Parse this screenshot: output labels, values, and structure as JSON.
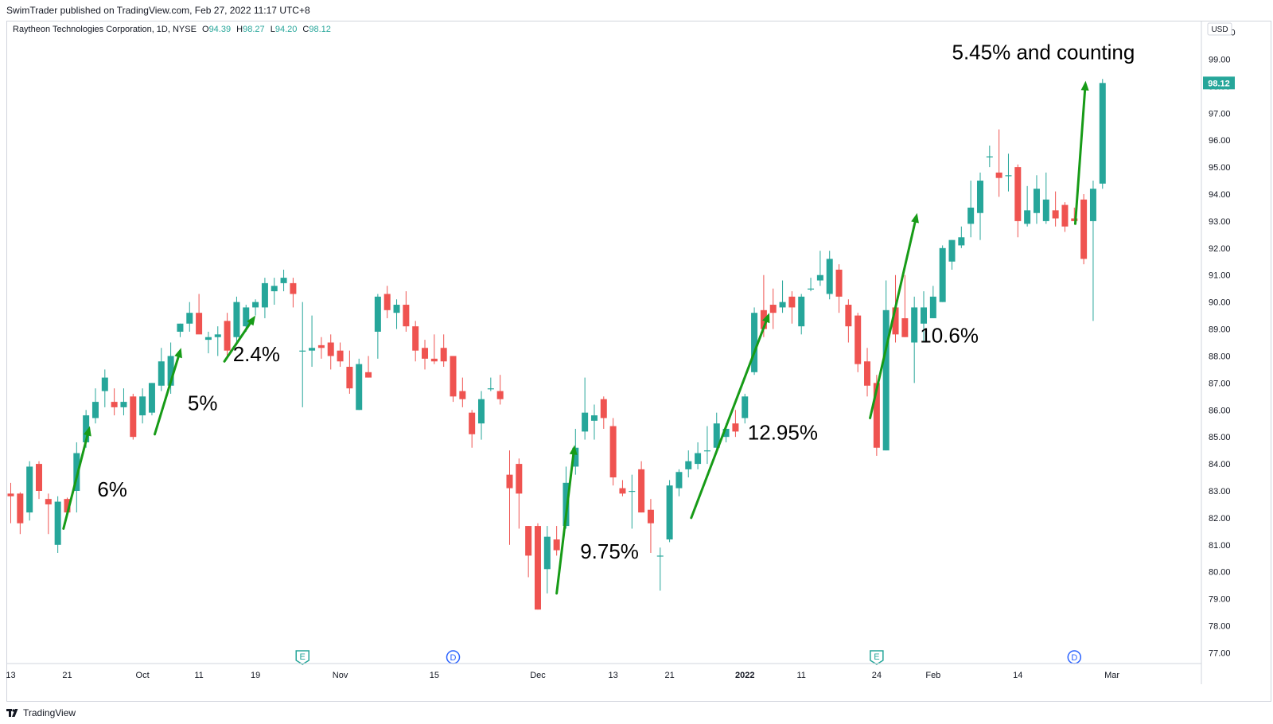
{
  "header": {
    "published_text": "SwimTrader published on TradingView.com, Feb 27, 2022 11:17 UTC+8"
  },
  "legend": {
    "symbol_text": "Raytheon Technologies Corporation, 1D, NYSE",
    "open_label": "O",
    "open_value": "94.39",
    "high_label": "H",
    "high_value": "98.27",
    "low_label": "L",
    "low_value": "94.20",
    "close_label": "C",
    "close_value": "98.12"
  },
  "footer": {
    "brand": "TradingView"
  },
  "colors": {
    "up": "#26a69a",
    "down": "#ef5350",
    "arrow": "#179b17",
    "grid": "#e0e3eb",
    "axis_text": "#131722"
  },
  "chart_data": {
    "type": "candlestick",
    "title": "",
    "currency_label": "USD",
    "last_price_label": "98.12",
    "ylim": [
      76.6,
      100.4
    ],
    "y_ticks": [
      "77.00",
      "78.00",
      "79.00",
      "80.00",
      "81.00",
      "82.00",
      "83.00",
      "84.00",
      "85.00",
      "86.00",
      "87.00",
      "88.00",
      "89.00",
      "90.00",
      "91.00",
      "92.00",
      "93.00",
      "94.00",
      "95.00",
      "96.00",
      "97.00",
      "98.00",
      "99.00",
      "100.00"
    ],
    "x_tick_labels": [
      {
        "bar": 0,
        "label": "13"
      },
      {
        "bar": 6,
        "label": "21"
      },
      {
        "bar": 14,
        "label": "Oct"
      },
      {
        "bar": 20,
        "label": "11"
      },
      {
        "bar": 26,
        "label": "19"
      },
      {
        "bar": 35,
        "label": "Nov"
      },
      {
        "bar": 45,
        "label": "15"
      },
      {
        "bar": 56,
        "label": "Dec"
      },
      {
        "bar": 64,
        "label": "13"
      },
      {
        "bar": 70,
        "label": "21"
      },
      {
        "bar": 78,
        "label": "2022"
      },
      {
        "bar": 84,
        "label": "11"
      },
      {
        "bar": 92,
        "label": "24"
      },
      {
        "bar": 98,
        "label": "Feb"
      },
      {
        "bar": 107,
        "label": "14"
      },
      {
        "bar": 117,
        "label": "Mar"
      }
    ],
    "candles": [
      {
        "o": 82.9,
        "h": 83.3,
        "l": 81.8,
        "c": 82.8
      },
      {
        "o": 82.9,
        "h": 82.95,
        "l": 81.4,
        "c": 81.8
      },
      {
        "o": 82.2,
        "h": 84.1,
        "l": 81.9,
        "c": 83.9
      },
      {
        "o": 84.0,
        "h": 84.1,
        "l": 82.7,
        "c": 83.0
      },
      {
        "o": 82.7,
        "h": 82.9,
        "l": 81.4,
        "c": 82.5
      },
      {
        "o": 81.0,
        "h": 82.8,
        "l": 80.7,
        "c": 82.6
      },
      {
        "o": 82.7,
        "h": 82.75,
        "l": 82.2,
        "c": 82.2
      },
      {
        "o": 83.0,
        "h": 84.8,
        "l": 82.2,
        "c": 84.4
      },
      {
        "o": 84.8,
        "h": 86.0,
        "l": 84.6,
        "c": 85.8
      },
      {
        "o": 85.7,
        "h": 86.8,
        "l": 85.5,
        "c": 86.3
      },
      {
        "o": 86.7,
        "h": 87.5,
        "l": 86.1,
        "c": 87.2
      },
      {
        "o": 86.3,
        "h": 86.8,
        "l": 85.8,
        "c": 86.1
      },
      {
        "o": 86.1,
        "h": 86.8,
        "l": 85.8,
        "c": 86.3
      },
      {
        "o": 86.5,
        "h": 86.6,
        "l": 84.9,
        "c": 85.0
      },
      {
        "o": 85.8,
        "h": 86.8,
        "l": 85.5,
        "c": 86.5
      },
      {
        "o": 85.9,
        "h": 87.0,
        "l": 85.8,
        "c": 87.0
      },
      {
        "o": 86.9,
        "h": 88.3,
        "l": 86.7,
        "c": 87.8
      },
      {
        "o": 86.9,
        "h": 88.5,
        "l": 86.6,
        "c": 88.0
      },
      {
        "o": 88.9,
        "h": 89.2,
        "l": 88.7,
        "c": 89.2
      },
      {
        "o": 89.2,
        "h": 90.0,
        "l": 88.9,
        "c": 89.6
      },
      {
        "o": 89.6,
        "h": 90.3,
        "l": 88.9,
        "c": 88.8
      },
      {
        "o": 88.6,
        "h": 88.9,
        "l": 88.1,
        "c": 88.7
      },
      {
        "o": 88.7,
        "h": 89.1,
        "l": 88.0,
        "c": 88.8
      },
      {
        "o": 89.3,
        "h": 89.6,
        "l": 87.9,
        "c": 88.2
      },
      {
        "o": 88.7,
        "h": 90.2,
        "l": 88.4,
        "c": 90.0
      },
      {
        "o": 89.1,
        "h": 89.9,
        "l": 88.9,
        "c": 89.8
      },
      {
        "o": 89.8,
        "h": 90.1,
        "l": 89.5,
        "c": 90.0
      },
      {
        "o": 89.8,
        "h": 90.9,
        "l": 89.4,
        "c": 90.7
      },
      {
        "o": 90.4,
        "h": 90.9,
        "l": 89.9,
        "c": 90.6
      },
      {
        "o": 90.7,
        "h": 91.2,
        "l": 90.4,
        "c": 90.9
      },
      {
        "o": 90.7,
        "h": 90.9,
        "l": 89.8,
        "c": 90.3
      },
      {
        "o": 88.2,
        "h": 90.0,
        "l": 86.1,
        "c": 88.2
      },
      {
        "o": 88.2,
        "h": 89.5,
        "l": 87.6,
        "c": 88.3
      },
      {
        "o": 88.4,
        "h": 88.7,
        "l": 87.9,
        "c": 88.3
      },
      {
        "o": 88.5,
        "h": 88.8,
        "l": 87.5,
        "c": 88.0
      },
      {
        "o": 88.2,
        "h": 88.5,
        "l": 87.6,
        "c": 87.8
      },
      {
        "o": 87.6,
        "h": 88.2,
        "l": 86.6,
        "c": 86.8
      },
      {
        "o": 86.0,
        "h": 87.9,
        "l": 86.0,
        "c": 87.7
      },
      {
        "o": 87.4,
        "h": 88.0,
        "l": 87.2,
        "c": 87.2
      },
      {
        "o": 88.9,
        "h": 90.3,
        "l": 87.9,
        "c": 90.2
      },
      {
        "o": 90.3,
        "h": 90.6,
        "l": 89.4,
        "c": 89.7
      },
      {
        "o": 89.6,
        "h": 90.1,
        "l": 89.0,
        "c": 89.9
      },
      {
        "o": 89.9,
        "h": 90.4,
        "l": 88.9,
        "c": 89.1
      },
      {
        "o": 89.1,
        "h": 89.3,
        "l": 87.8,
        "c": 88.2
      },
      {
        "o": 88.3,
        "h": 88.6,
        "l": 87.5,
        "c": 87.9
      },
      {
        "o": 87.9,
        "h": 88.8,
        "l": 87.7,
        "c": 87.8
      },
      {
        "o": 88.3,
        "h": 88.8,
        "l": 87.6,
        "c": 87.8
      },
      {
        "o": 88.0,
        "h": 88.0,
        "l": 86.3,
        "c": 86.5
      },
      {
        "o": 86.7,
        "h": 87.2,
        "l": 86.1,
        "c": 86.4
      },
      {
        "o": 85.9,
        "h": 86.0,
        "l": 84.6,
        "c": 85.1
      },
      {
        "o": 85.5,
        "h": 86.7,
        "l": 84.9,
        "c": 86.4
      },
      {
        "o": 86.8,
        "h": 87.2,
        "l": 86.7,
        "c": 86.8
      },
      {
        "o": 86.7,
        "h": 87.3,
        "l": 86.2,
        "c": 86.4
      },
      {
        "o": 83.6,
        "h": 84.5,
        "l": 81.0,
        "c": 83.1
      },
      {
        "o": 84.0,
        "h": 84.2,
        "l": 81.6,
        "c": 82.9
      },
      {
        "o": 81.7,
        "h": 81.7,
        "l": 79.8,
        "c": 80.6
      },
      {
        "o": 81.7,
        "h": 81.8,
        "l": 78.6,
        "c": 78.6
      },
      {
        "o": 80.1,
        "h": 81.7,
        "l": 79.2,
        "c": 81.3
      },
      {
        "o": 81.2,
        "h": 81.7,
        "l": 80.6,
        "c": 80.8
      },
      {
        "o": 81.7,
        "h": 83.9,
        "l": 81.6,
        "c": 83.3
      },
      {
        "o": 83.9,
        "h": 85.3,
        "l": 83.6,
        "c": 84.6
      },
      {
        "o": 85.2,
        "h": 87.2,
        "l": 84.9,
        "c": 85.9
      },
      {
        "o": 85.6,
        "h": 86.2,
        "l": 84.9,
        "c": 85.8
      },
      {
        "o": 86.4,
        "h": 86.5,
        "l": 85.3,
        "c": 85.7
      },
      {
        "o": 85.4,
        "h": 85.7,
        "l": 83.2,
        "c": 83.5
      },
      {
        "o": 83.1,
        "h": 83.4,
        "l": 82.8,
        "c": 82.9
      },
      {
        "o": 83.0,
        "h": 83.6,
        "l": 81.6,
        "c": 83.0
      },
      {
        "o": 83.8,
        "h": 84.1,
        "l": 82.2,
        "c": 82.2
      },
      {
        "o": 82.3,
        "h": 82.7,
        "l": 80.7,
        "c": 81.8
      },
      {
        "o": 80.6,
        "h": 80.9,
        "l": 79.3,
        "c": 80.6
      },
      {
        "o": 81.2,
        "h": 83.4,
        "l": 81.1,
        "c": 83.2
      },
      {
        "o": 83.1,
        "h": 83.8,
        "l": 82.8,
        "c": 83.7
      },
      {
        "o": 83.8,
        "h": 84.5,
        "l": 83.5,
        "c": 84.1
      },
      {
        "o": 84.0,
        "h": 84.8,
        "l": 83.8,
        "c": 84.4
      },
      {
        "o": 84.5,
        "h": 85.4,
        "l": 84.0,
        "c": 84.5
      },
      {
        "o": 84.6,
        "h": 85.9,
        "l": 84.4,
        "c": 85.5
      },
      {
        "o": 85.0,
        "h": 85.5,
        "l": 84.8,
        "c": 85.3
      },
      {
        "o": 85.5,
        "h": 86.0,
        "l": 85.0,
        "c": 85.2
      },
      {
        "o": 85.7,
        "h": 86.6,
        "l": 85.5,
        "c": 86.5
      },
      {
        "o": 87.4,
        "h": 89.8,
        "l": 87.3,
        "c": 89.6
      },
      {
        "o": 89.7,
        "h": 91.0,
        "l": 88.7,
        "c": 89.0
      },
      {
        "o": 89.9,
        "h": 90.5,
        "l": 89.0,
        "c": 89.6
      },
      {
        "o": 89.8,
        "h": 90.8,
        "l": 89.6,
        "c": 90.0
      },
      {
        "o": 90.2,
        "h": 90.4,
        "l": 89.2,
        "c": 89.8
      },
      {
        "o": 89.1,
        "h": 90.3,
        "l": 88.8,
        "c": 90.2
      },
      {
        "o": 90.5,
        "h": 90.9,
        "l": 90.4,
        "c": 90.5
      },
      {
        "o": 90.8,
        "h": 91.9,
        "l": 90.6,
        "c": 91.0
      },
      {
        "o": 90.3,
        "h": 91.9,
        "l": 90.1,
        "c": 91.6
      },
      {
        "o": 91.2,
        "h": 91.4,
        "l": 89.6,
        "c": 90.2
      },
      {
        "o": 89.9,
        "h": 90.1,
        "l": 88.5,
        "c": 89.1
      },
      {
        "o": 89.5,
        "h": 89.6,
        "l": 87.4,
        "c": 87.7
      },
      {
        "o": 87.8,
        "h": 88.3,
        "l": 86.5,
        "c": 86.9
      },
      {
        "o": 87.0,
        "h": 87.3,
        "l": 84.3,
        "c": 84.6
      },
      {
        "o": 84.5,
        "h": 90.8,
        "l": 84.5,
        "c": 89.7
      },
      {
        "o": 89.8,
        "h": 91.0,
        "l": 88.5,
        "c": 88.8
      },
      {
        "o": 89.4,
        "h": 91.0,
        "l": 88.7,
        "c": 88.7
      },
      {
        "o": 88.5,
        "h": 90.2,
        "l": 87.0,
        "c": 89.8
      },
      {
        "o": 89.2,
        "h": 90.4,
        "l": 88.5,
        "c": 89.8
      },
      {
        "o": 89.4,
        "h": 90.6,
        "l": 89.4,
        "c": 90.2
      },
      {
        "o": 90.0,
        "h": 92.1,
        "l": 90.0,
        "c": 92.0
      },
      {
        "o": 91.5,
        "h": 92.3,
        "l": 91.2,
        "c": 92.3
      },
      {
        "o": 92.1,
        "h": 92.8,
        "l": 92.0,
        "c": 92.4
      },
      {
        "o": 92.9,
        "h": 94.5,
        "l": 92.4,
        "c": 93.5
      },
      {
        "o": 93.3,
        "h": 94.8,
        "l": 92.3,
        "c": 94.5
      },
      {
        "o": 95.4,
        "h": 95.8,
        "l": 95.0,
        "c": 95.4
      },
      {
        "o": 94.8,
        "h": 96.4,
        "l": 93.9,
        "c": 94.6
      },
      {
        "o": 94.7,
        "h": 95.5,
        "l": 94.1,
        "c": 94.7
      },
      {
        "o": 95.0,
        "h": 95.1,
        "l": 92.4,
        "c": 93.0
      },
      {
        "o": 92.9,
        "h": 94.3,
        "l": 92.8,
        "c": 93.4
      },
      {
        "o": 93.3,
        "h": 94.7,
        "l": 92.9,
        "c": 94.2
      },
      {
        "o": 93.0,
        "h": 94.8,
        "l": 92.9,
        "c": 93.8
      },
      {
        "o": 93.4,
        "h": 94.1,
        "l": 92.8,
        "c": 93.1
      },
      {
        "o": 93.6,
        "h": 93.7,
        "l": 92.6,
        "c": 92.8
      },
      {
        "o": 93.1,
        "h": 93.5,
        "l": 93.0,
        "c": 93.0
      },
      {
        "o": 93.8,
        "h": 94.0,
        "l": 91.4,
        "c": 91.6
      },
      {
        "o": 93.0,
        "h": 94.5,
        "l": 89.3,
        "c": 94.2
      },
      {
        "o": 94.39,
        "h": 98.27,
        "l": 94.2,
        "c": 98.12
      }
    ],
    "event_markers": [
      {
        "bar": 31,
        "label": "E"
      },
      {
        "bar": 47,
        "label": "D"
      },
      {
        "bar": 92,
        "label": "E"
      },
      {
        "bar": 113,
        "label": "D"
      }
    ],
    "annotations": [
      {
        "text": "6%",
        "bar_from": 5.6,
        "price_from": 81.6,
        "bar_to": 8.4,
        "price_to": 85.4,
        "label_bar": 9.2,
        "label_price": 82.8
      },
      {
        "text": "5%",
        "bar_from": 15.3,
        "price_from": 85.1,
        "bar_to": 18.1,
        "price_to": 88.3,
        "label_bar": 18.8,
        "label_price": 86.0
      },
      {
        "text": "2.4%",
        "bar_from": 22.7,
        "price_from": 87.8,
        "bar_to": 26.0,
        "price_to": 89.5,
        "label_bar": 23.6,
        "label_price": 87.8
      },
      {
        "text": "9.75%",
        "bar_from": 58.0,
        "price_from": 79.2,
        "bar_to": 59.9,
        "price_to": 84.7,
        "label_bar": 60.5,
        "label_price": 80.5
      },
      {
        "text": "12.95%",
        "bar_from": 72.3,
        "price_from": 82.0,
        "bar_to": 80.6,
        "price_to": 89.6,
        "label_bar": 78.3,
        "label_price": 84.9
      },
      {
        "text": "10.6%",
        "bar_from": 91.3,
        "price_from": 85.7,
        "bar_to": 96.3,
        "price_to": 93.3,
        "label_bar": 96.6,
        "label_price": 88.5
      },
      {
        "text": "5.45% and counting",
        "bar_from": 113.1,
        "price_from": 92.9,
        "bar_to": 114.2,
        "price_to": 98.2,
        "label_bar": 100.0,
        "label_price": 99.0
      }
    ]
  }
}
